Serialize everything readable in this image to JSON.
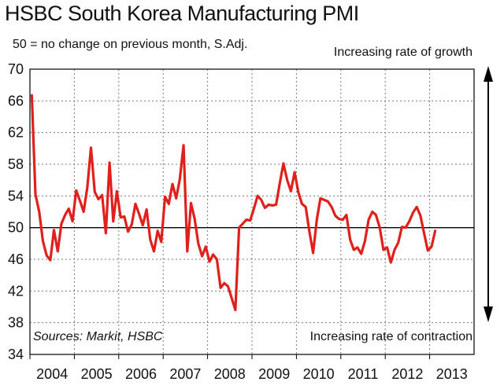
{
  "chart_data": {
    "type": "line",
    "title": "HSBC South Korea Manufacturing PMI",
    "subtitle": "50 = no change on previous month, S.Adj.",
    "annotations": {
      "growth": "Increasing rate of growth",
      "contraction": "Increasing rate of contraction"
    },
    "source": "Sources: Markit, HSBC",
    "xlabel": "",
    "ylabel": "",
    "ylim": [
      34,
      70
    ],
    "yticks": [
      34,
      38,
      42,
      46,
      50,
      54,
      58,
      62,
      66,
      70
    ],
    "reference_line": 50,
    "x_start": 2004,
    "x_tick_labels": [
      "2004",
      "2005",
      "2006",
      "2007",
      "2008",
      "2009",
      "2010",
      "2011",
      "2012",
      "2013"
    ],
    "series": [
      {
        "name": "HSBC South Korea Manufacturing PMI",
        "color": "#e0201c",
        "values": [
          66.7,
          54.2,
          52.0,
          48.3,
          46.5,
          45.9,
          49.7,
          47.0,
          50.5,
          51.6,
          52.4,
          50.8,
          54.7,
          53.4,
          52.0,
          55.1,
          60.1,
          54.5,
          53.6,
          54.1,
          49.3,
          58.2,
          50.8,
          54.6,
          51.3,
          51.4,
          49.5,
          50.4,
          53.0,
          51.7,
          50.3,
          52.3,
          48.5,
          47.0,
          49.6,
          48.2,
          53.9,
          53.0,
          55.5,
          53.7,
          56.1,
          60.4,
          47.0,
          53.1,
          51.1,
          48.0,
          46.4,
          47.6,
          45.7,
          46.6,
          46.0,
          42.4,
          43.0,
          42.6,
          41.1,
          39.6,
          50.0,
          50.5,
          51.0,
          50.9,
          52.4,
          54.0,
          53.5,
          52.5,
          52.9,
          52.8,
          52.9,
          55.6,
          58.1,
          56.0,
          54.6,
          57.0,
          54.5,
          53.0,
          52.6,
          49.5,
          46.8,
          51.0,
          53.7,
          53.5,
          53.3,
          52.6,
          51.5,
          51.1,
          51.0,
          51.6,
          48.5,
          47.2,
          47.5,
          46.7,
          48.3,
          51.0,
          52.0,
          51.6,
          50.0,
          47.2,
          47.5,
          45.6,
          47.2,
          48.1,
          50.1,
          50.0,
          50.8,
          51.9,
          52.6,
          51.5,
          49.3,
          47.1,
          47.6,
          49.6
        ]
      }
    ]
  }
}
